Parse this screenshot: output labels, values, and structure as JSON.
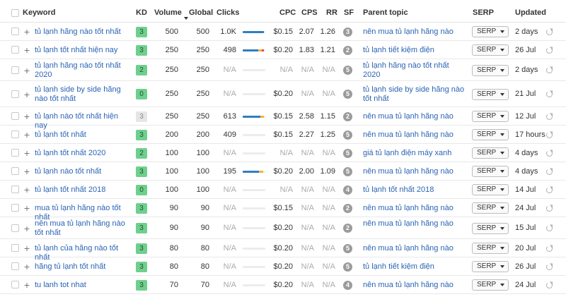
{
  "columns": {
    "keyword": "Keyword",
    "kd": "KD",
    "volume": "Volume",
    "global": "Global",
    "clicks": "Clicks",
    "cpc": "CPC",
    "cps": "CPS",
    "rr": "RR",
    "sf": "SF",
    "parent_topic": "Parent topic",
    "serp": "SERP",
    "updated": "Updated"
  },
  "colors": {
    "kd_green": "#6fcf8d",
    "link": "#2a63b4",
    "organic": "#2f7ec2",
    "paid": "#e54848",
    "extra": "#f2b43a"
  },
  "rows": [
    {
      "keyword": "tủ lạnh hãng nào tốt nhất",
      "kd": "3",
      "kd_style": "green",
      "volume": "500",
      "global": "500",
      "clicks": "1.0K",
      "clicks_bar": [
        0.95,
        0.0,
        0.0
      ],
      "cpc": "$0.15",
      "cps": "2.07",
      "rr": "1.26",
      "sf": "3",
      "parent_topic": "nên mua tủ lạnh hãng nào",
      "serp": "SERP",
      "updated": "2 days"
    },
    {
      "keyword": "tủ lạnh tốt nhất hiện nay",
      "kd": "3",
      "kd_style": "green",
      "volume": "250",
      "global": "250",
      "clicks": "498",
      "clicks_bar": [
        0.7,
        0.15,
        0.1
      ],
      "cpc": "$0.20",
      "cps": "1.83",
      "rr": "1.21",
      "sf": "2",
      "parent_topic": "tủ lạnh tiết kiệm điện",
      "serp": "SERP",
      "updated": "26 Jul"
    },
    {
      "keyword": "tủ lạnh hãng nào tốt nhất 2020",
      "kd": "2",
      "kd_style": "green",
      "volume": "250",
      "global": "250",
      "clicks": "N/A",
      "clicks_bar": [
        0,
        0,
        0
      ],
      "cpc": "N/A",
      "cps": "N/A",
      "rr": "N/A",
      "sf": "5",
      "parent_topic": "tủ lạnh hãng nào tốt nhất 2020",
      "serp": "SERP",
      "updated": "2 days"
    },
    {
      "keyword": "tủ lạnh side by side hãng nào tốt nhất",
      "kd": "0",
      "kd_style": "green",
      "volume": "250",
      "global": "250",
      "clicks": "N/A",
      "clicks_bar": [
        0,
        0,
        0
      ],
      "cpc": "$0.20",
      "cps": "N/A",
      "rr": "N/A",
      "sf": "5",
      "parent_topic": "tủ lạnh side by side hãng nào tốt nhất",
      "serp": "SERP",
      "updated": "21 Jul"
    },
    {
      "keyword": "tủ lạnh nào tốt nhất hiện nay",
      "kd": "3",
      "kd_style": "gray",
      "volume": "250",
      "global": "250",
      "clicks": "613",
      "clicks_bar": [
        0.78,
        0.17,
        0.0
      ],
      "cpc": "$0.15",
      "cps": "2.58",
      "rr": "1.15",
      "sf": "2",
      "parent_topic": "nên mua tủ lạnh hãng nào",
      "serp": "SERP",
      "updated": "12 Jul"
    },
    {
      "keyword": "tủ lạnh tốt nhất",
      "kd": "3",
      "kd_style": "green",
      "volume": "200",
      "global": "200",
      "clicks": "409",
      "clicks_bar": [
        0,
        0,
        0
      ],
      "cpc": "$0.15",
      "cps": "2.27",
      "rr": "1.25",
      "sf": "5",
      "parent_topic": "nên mua tủ lạnh hãng nào",
      "serp": "SERP",
      "updated": "17 hours"
    },
    {
      "keyword": "tủ lạnh tốt nhất 2020",
      "kd": "2",
      "kd_style": "green",
      "volume": "100",
      "global": "100",
      "clicks": "N/A",
      "clicks_bar": [
        0,
        0,
        0
      ],
      "cpc": "N/A",
      "cps": "N/A",
      "rr": "N/A",
      "sf": "5",
      "parent_topic": "giá tủ lạnh điện máy xanh",
      "serp": "SERP",
      "updated": "4 days"
    },
    {
      "keyword": "tủ lạnh nào tốt nhất",
      "kd": "3",
      "kd_style": "green",
      "volume": "100",
      "global": "100",
      "clicks": "195",
      "clicks_bar": [
        0.72,
        0.2,
        0.0
      ],
      "cpc": "$0.20",
      "cps": "2.00",
      "rr": "1.09",
      "sf": "5",
      "parent_topic": "nên mua tủ lạnh hãng nào",
      "serp": "SERP",
      "updated": "4 days"
    },
    {
      "keyword": "tủ lạnh tốt nhất 2018",
      "kd": "0",
      "kd_style": "green",
      "volume": "100",
      "global": "100",
      "clicks": "N/A",
      "clicks_bar": [
        0,
        0,
        0
      ],
      "cpc": "N/A",
      "cps": "N/A",
      "rr": "N/A",
      "sf": "4",
      "parent_topic": "tủ lạnh tốt nhất 2018",
      "serp": "SERP",
      "updated": "14 Jul"
    },
    {
      "keyword": "mua tủ lạnh hãng nào tốt nhất",
      "kd": "3",
      "kd_style": "green",
      "volume": "90",
      "global": "90",
      "clicks": "N/A",
      "clicks_bar": [
        0,
        0,
        0
      ],
      "cpc": "$0.15",
      "cps": "N/A",
      "rr": "N/A",
      "sf": "2",
      "parent_topic": "nên mua tủ lạnh hãng nào",
      "serp": "SERP",
      "updated": "24 Jul"
    },
    {
      "keyword": "nên mua tủ lạnh hãng nào tốt nhất",
      "kd": "3",
      "kd_style": "green",
      "volume": "90",
      "global": "90",
      "clicks": "N/A",
      "clicks_bar": [
        0,
        0,
        0
      ],
      "cpc": "$0.20",
      "cps": "N/A",
      "rr": "N/A",
      "sf": "2",
      "parent_topic": "nên mua tủ lạnh hãng nào",
      "serp": "SERP",
      "updated": "15 Jul"
    },
    {
      "keyword": "tủ lạnh của hãng nào tốt nhất",
      "kd": "3",
      "kd_style": "green",
      "volume": "80",
      "global": "80",
      "clicks": "N/A",
      "clicks_bar": [
        0,
        0,
        0
      ],
      "cpc": "$0.20",
      "cps": "N/A",
      "rr": "N/A",
      "sf": "5",
      "parent_topic": "nên mua tủ lạnh hãng nào",
      "serp": "SERP",
      "updated": "20 Jul"
    },
    {
      "keyword": "hãng tủ lạnh tốt nhất",
      "kd": "3",
      "kd_style": "green",
      "volume": "80",
      "global": "80",
      "clicks": "N/A",
      "clicks_bar": [
        0,
        0,
        0
      ],
      "cpc": "$0.20",
      "cps": "N/A",
      "rr": "N/A",
      "sf": "5",
      "parent_topic": "tủ lạnh tiết kiệm điện",
      "serp": "SERP",
      "updated": "26 Jul"
    },
    {
      "keyword": "tu lanh tot nhat",
      "kd": "3",
      "kd_style": "green",
      "volume": "70",
      "global": "70",
      "clicks": "N/A",
      "clicks_bar": [
        0,
        0,
        0
      ],
      "cpc": "$0.20",
      "cps": "N/A",
      "rr": "N/A",
      "sf": "4",
      "parent_topic": "nên mua tủ lạnh hãng nào",
      "serp": "SERP",
      "updated": "24 Jul"
    }
  ]
}
